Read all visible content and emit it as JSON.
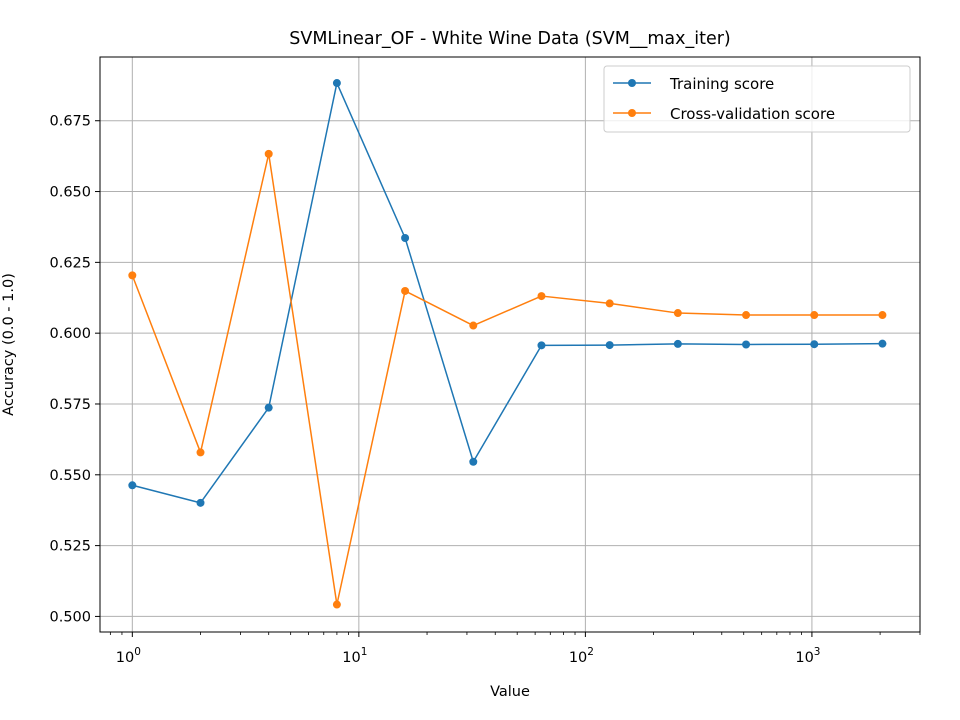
{
  "chart_data": {
    "type": "line",
    "title": "SVMLinear_OF - White Wine Data (SVM__max_iter)",
    "xlabel": "Value",
    "ylabel": "Accuracy (0.0 - 1.0)",
    "xscale": "log",
    "xlim": [
      0.72,
      3000
    ],
    "ylim": [
      0.4945,
      0.6975
    ],
    "grid": true,
    "legend_position": "top-right",
    "x": [
      1,
      2,
      4,
      8,
      16,
      32,
      64,
      128,
      256,
      512,
      1024,
      2048
    ],
    "x_ticks": [
      {
        "value": 1,
        "base": "10",
        "exp": "0"
      },
      {
        "value": 10,
        "base": "10",
        "exp": "1"
      },
      {
        "value": 100,
        "base": "10",
        "exp": "2"
      },
      {
        "value": 1000,
        "base": "10",
        "exp": "3"
      }
    ],
    "y_ticks": [
      {
        "value": 0.5,
        "label": "0.500"
      },
      {
        "value": 0.525,
        "label": "0.525"
      },
      {
        "value": 0.55,
        "label": "0.550"
      },
      {
        "value": 0.575,
        "label": "0.575"
      },
      {
        "value": 0.6,
        "label": "0.600"
      },
      {
        "value": 0.625,
        "label": "0.625"
      },
      {
        "value": 0.65,
        "label": "0.650"
      },
      {
        "value": 0.675,
        "label": "0.675"
      }
    ],
    "series": [
      {
        "name": "Training score",
        "color": "#1f77b4",
        "values": [
          0.5463,
          0.5401,
          0.5737,
          0.6883,
          0.6336,
          0.5546,
          0.5957,
          0.5958,
          0.5962,
          0.596,
          0.5961,
          0.5963
        ]
      },
      {
        "name": "Cross-validation score",
        "color": "#ff7f0e",
        "values": [
          0.6204,
          0.5579,
          0.6633,
          0.5042,
          0.6149,
          0.6027,
          0.6131,
          0.6105,
          0.6071,
          0.6064,
          0.6064,
          0.6064
        ]
      }
    ]
  }
}
